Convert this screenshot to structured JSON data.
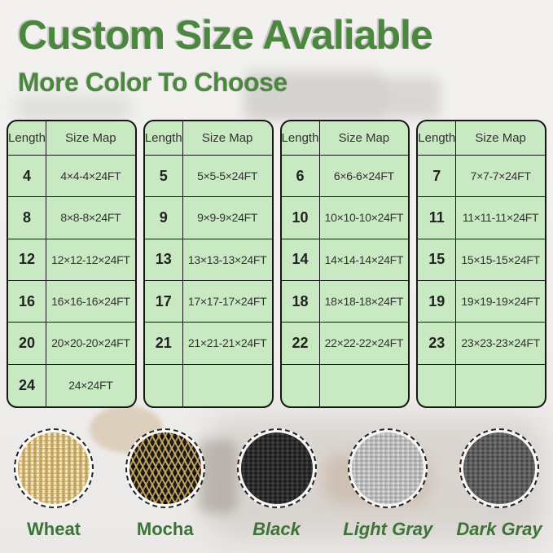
{
  "title": "Custom Size Avaliable",
  "subtitle": "More Color To Choose",
  "tables": [
    {
      "headers": [
        "Length",
        "Size Map"
      ],
      "rows": [
        [
          "4",
          "4×4-4×24FT"
        ],
        [
          "8",
          "8×8-8×24FT"
        ],
        [
          "12",
          "12×12-12×24FT"
        ],
        [
          "16",
          "16×16-16×24FT"
        ],
        [
          "20",
          "20×20-20×24FT"
        ],
        [
          "24",
          "24×24FT"
        ]
      ]
    },
    {
      "headers": [
        "Length",
        "Size Map"
      ],
      "rows": [
        [
          "5",
          "5×5-5×24FT"
        ],
        [
          "9",
          "9×9-9×24FT"
        ],
        [
          "13",
          "13×13-13×24FT"
        ],
        [
          "17",
          "17×17-17×24FT"
        ],
        [
          "21",
          "21×21-21×24FT"
        ],
        [
          "",
          ""
        ]
      ]
    },
    {
      "headers": [
        "Length",
        "Size Map"
      ],
      "rows": [
        [
          "6",
          "6×6-6×24FT"
        ],
        [
          "10",
          "10×10-10×24FT"
        ],
        [
          "14",
          "14×14-14×24FT"
        ],
        [
          "18",
          "18×18-18×24FT"
        ],
        [
          "22",
          "22×22-22×24FT"
        ],
        [
          "",
          ""
        ]
      ]
    },
    {
      "headers": [
        "Length",
        "Size Map"
      ],
      "rows": [
        [
          "7",
          "7×7-7×24FT"
        ],
        [
          "11",
          "11×11-11×24FT"
        ],
        [
          "15",
          "15×15-15×24FT"
        ],
        [
          "19",
          "19×19-19×24FT"
        ],
        [
          "23",
          "23×23-23×24FT"
        ],
        [
          "",
          ""
        ]
      ]
    }
  ],
  "swatches": [
    {
      "label": "Wheat",
      "texture": "wheat",
      "italic": false,
      "color": "#d9be7f"
    },
    {
      "label": "Mocha",
      "texture": "mocha",
      "italic": false,
      "color": "#6a5a35"
    },
    {
      "label": "Black",
      "texture": "black",
      "italic": true,
      "color": "#2d2d2d"
    },
    {
      "label": "Light Gray",
      "texture": "lightgray",
      "italic": true,
      "color": "#b7b7b7"
    },
    {
      "label": "Dark Gray",
      "texture": "darkgray",
      "italic": true,
      "color": "#5e5e5e"
    }
  ],
  "colors": {
    "heading_green": "#4c8740",
    "label_green": "#3c7336",
    "table_background": "#c9e9c3",
    "table_border": "#161616",
    "page_background": "#f0efed"
  }
}
